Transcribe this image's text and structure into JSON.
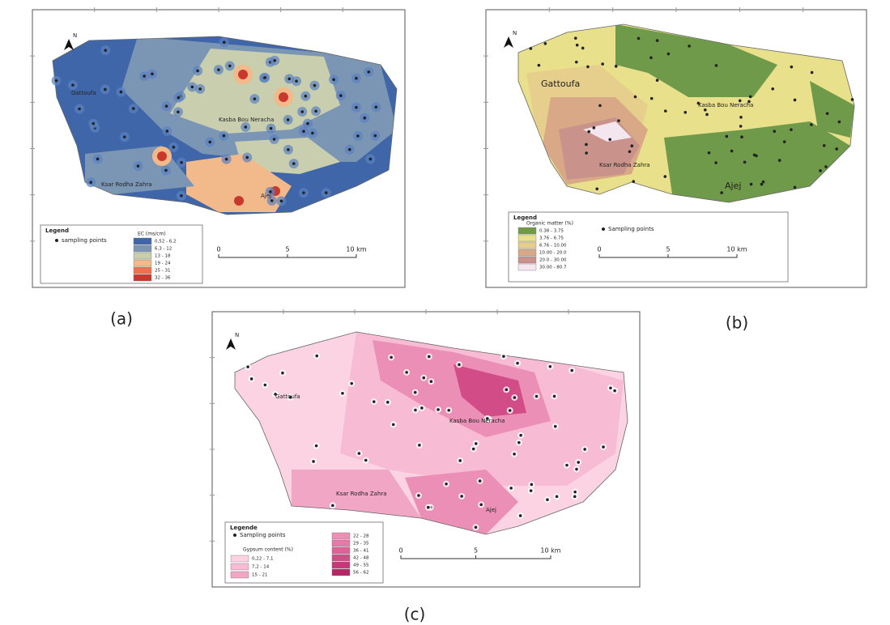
{
  "panels": [
    {
      "label": "(a)",
      "north": "N",
      "places": [
        "Gattoufa",
        "Kasba Bou Neracha",
        "Ksar Rodha Zahra",
        "Ajej"
      ],
      "legend": {
        "title": "Legend",
        "points": "sampling points",
        "heading": "EC (ms/cm)",
        "classes": [
          {
            "label": "0,52 - 6,2",
            "color": "#3f66a8"
          },
          {
            "label": "6,3 - 12",
            "color": "#7b95b5"
          },
          {
            "label": "13 - 18",
            "color": "#c9cfae"
          },
          {
            "label": "19 - 24",
            "color": "#f2b98a"
          },
          {
            "label": "25 - 31",
            "color": "#e8744f"
          },
          {
            "label": "32 - 36",
            "color": "#c8382c"
          }
        ]
      },
      "scale": [
        "0",
        "5",
        "10 km"
      ]
    },
    {
      "label": "(b)",
      "north": "N",
      "places": [
        "Gattoufa",
        "Kasba Bou Neracha",
        "Ksar Rodha Zahra",
        "Ajej"
      ],
      "legend": {
        "title": "Legend",
        "points": "Sampling points",
        "heading": "Organic matter (%)",
        "classes": [
          {
            "label": "0.38 - 3.75",
            "color": "#6e9a4a"
          },
          {
            "label": "3.76 - 6.75",
            "color": "#e8e08a"
          },
          {
            "label": "6.76 - 10.00",
            "color": "#e6cf8c"
          },
          {
            "label": "10.00 - 20.0",
            "color": "#d9a987"
          },
          {
            "label": "20.0 - 30.00",
            "color": "#c9928a"
          },
          {
            "label": "30.00 - 80.7",
            "color": "#f4e6ee"
          }
        ]
      },
      "scale": [
        "0",
        "5",
        "10 km"
      ]
    },
    {
      "label": "(c)",
      "north": "N",
      "places": [
        "Gattoufa",
        "Kasba Bou Neracha",
        "Ksar Rodha Zahra",
        "Ajej"
      ],
      "legend": {
        "title": "Legende",
        "points": "Sampling points",
        "heading": "Gypsum content (%)",
        "classes": [
          {
            "label": "0,22 - 7,1",
            "color": "#fbd3e2"
          },
          {
            "label": "7,2 - 14",
            "color": "#f7bcd3"
          },
          {
            "label": "15 - 21",
            "color": "#f2a6c5"
          },
          {
            "label": "22 - 28",
            "color": "#ec8fb6"
          },
          {
            "label": "29 - 35",
            "color": "#e579a7"
          },
          {
            "label": "36 - 41",
            "color": "#dc6398"
          },
          {
            "label": "42 - 48",
            "color": "#d24d88"
          },
          {
            "label": "49 - 55",
            "color": "#c63878"
          },
          {
            "label": "56 - 62",
            "color": "#b82567"
          }
        ]
      },
      "scale": [
        "0",
        "5",
        "10 km"
      ]
    }
  ]
}
